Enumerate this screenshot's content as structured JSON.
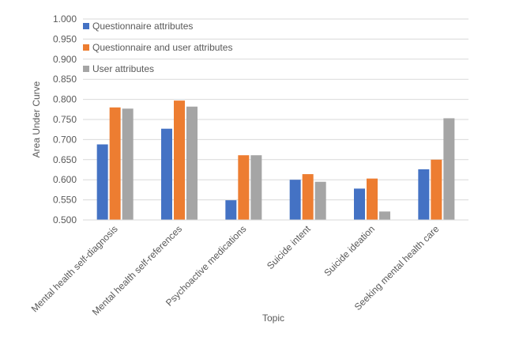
{
  "chart_data": {
    "type": "bar",
    "title": "",
    "xlabel": "Topic",
    "ylabel": "Area Under Curve",
    "ylim": [
      0.5,
      1.0
    ],
    "yticks": [
      "0.500",
      "0.550",
      "0.600",
      "0.650",
      "0.700",
      "0.750",
      "0.800",
      "0.850",
      "0.900",
      "0.950",
      "1.000"
    ],
    "categories": [
      "Mental health self-diagnosis",
      "Mental health self-references",
      "Psychoactive medications",
      "Suicide intent",
      "Suicide ideation",
      "Seeking mental health care"
    ],
    "series": [
      {
        "name": "Questionnaire attributes",
        "color": "#4472c4",
        "values": [
          0.688,
          0.727,
          0.549,
          0.6,
          0.578,
          0.626
        ]
      },
      {
        "name": "Questionnaire and user attributes",
        "color": "#ed7d31",
        "values": [
          0.78,
          0.797,
          0.661,
          0.614,
          0.603,
          0.65
        ]
      },
      {
        "name": "User attributes",
        "color": "#a5a5a5",
        "values": [
          0.777,
          0.782,
          0.661,
          0.595,
          0.521,
          0.753
        ]
      }
    ],
    "grid": true,
    "legend_position": "top-left"
  }
}
